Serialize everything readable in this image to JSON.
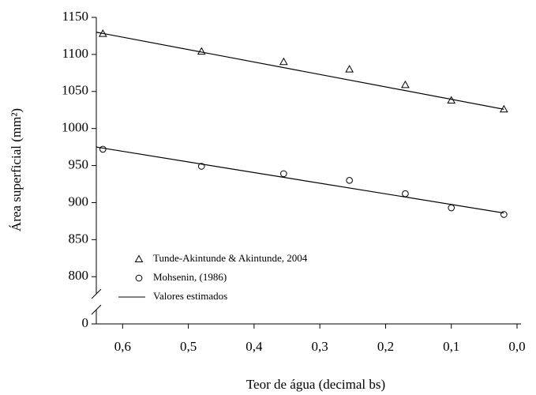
{
  "chart_data": {
    "type": "scatter",
    "xlabel": "Teor de água (decimal bs)",
    "ylabel": "Área superficial (mm²)",
    "xlim": [
      0.64,
      0.0
    ],
    "xticks": [
      {
        "value": 0.6,
        "label": "0,6"
      },
      {
        "value": 0.5,
        "label": "0,5"
      },
      {
        "value": 0.4,
        "label": "0,4"
      },
      {
        "value": 0.3,
        "label": "0,3"
      },
      {
        "value": 0.2,
        "label": "0,2"
      },
      {
        "value": 0.1,
        "label": "0,1"
      },
      {
        "value": 0.0,
        "label": "0,0"
      }
    ],
    "ylim": [
      0,
      1150
    ],
    "y_break": [
      0,
      780
    ],
    "yticks": [
      0,
      800,
      850,
      900,
      950,
      1000,
      1050,
      1100,
      1150
    ],
    "series": [
      {
        "name": "Tunde-Akintunde & Akintunde, 2004",
        "marker": "triangle",
        "color": "#000000",
        "x": [
          0.63,
          0.48,
          0.355,
          0.255,
          0.17,
          0.1,
          0.02
        ],
        "values": [
          1128,
          1104,
          1090,
          1080,
          1059,
          1038,
          1026
        ]
      },
      {
        "name": "Mohsenin, (1986)",
        "marker": "circle",
        "color": "#000000",
        "x": [
          0.63,
          0.48,
          0.355,
          0.255,
          0.17,
          0.1,
          0.02
        ],
        "values": [
          972,
          949,
          939,
          930,
          912,
          893,
          884
        ]
      }
    ],
    "fit": {
      "name": "Valores estimados",
      "color": "#000000",
      "lines": [
        {
          "x": [
            0.64,
            0.02
          ],
          "values": [
            1130,
            1026
          ]
        },
        {
          "x": [
            0.64,
            0.02
          ],
          "values": [
            975,
            886
          ]
        }
      ]
    }
  }
}
